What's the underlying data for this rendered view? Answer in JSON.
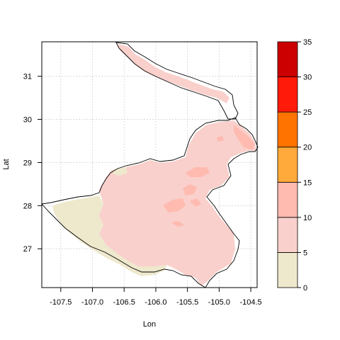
{
  "chart_data": {
    "type": "heatmap",
    "title": "",
    "xlabel": "Lon",
    "ylabel": "Lat",
    "xlim": [
      -107.8,
      -104.4
    ],
    "ylim": [
      26.1,
      31.8
    ],
    "x_ticks": [
      "-107.5",
      "-107.0",
      "-106.5",
      "-106.0",
      "-105.5",
      "-105.0",
      "-104.5"
    ],
    "y_ticks": [
      "27",
      "28",
      "29",
      "30",
      "31"
    ],
    "grid": true,
    "legend": {
      "placement": "right",
      "breaks": [
        "0",
        "5",
        "10",
        "15",
        "20",
        "25",
        "30",
        "35"
      ],
      "colors": [
        "#EEE8CD",
        "#F9D0CB",
        "#FFBBB0",
        "#FFAA3A",
        "#FF7300",
        "#FF1A0A",
        "#CC0000"
      ]
    }
  }
}
